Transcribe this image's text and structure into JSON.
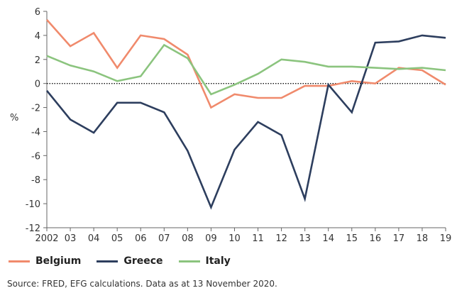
{
  "chart_data": {
    "type": "line",
    "categories": [
      "2002",
      "03",
      "04",
      "05",
      "06",
      "07",
      "08",
      "09",
      "10",
      "11",
      "12",
      "13",
      "14",
      "15",
      "16",
      "17",
      "18",
      "19"
    ],
    "ylabel": "%",
    "ylim": [
      -12,
      6
    ],
    "yticks": [
      6,
      4,
      2,
      0,
      -2,
      -4,
      -6,
      -8,
      -10,
      -12
    ],
    "zero_line": "dotted",
    "series": [
      {
        "name": "Belgium",
        "color": "#f08a6c",
        "values": [
          5.3,
          3.1,
          4.2,
          1.3,
          4.0,
          3.7,
          2.4,
          -2.0,
          -0.9,
          -1.2,
          -1.2,
          -0.2,
          -0.2,
          0.2,
          0.0,
          1.3,
          1.1,
          -0.1
        ]
      },
      {
        "name": "Greece",
        "color": "#2d3e5e",
        "values": [
          -0.6,
          -3.0,
          -4.1,
          -1.6,
          -1.6,
          -2.4,
          -5.6,
          -10.3,
          -5.5,
          -3.2,
          -4.3,
          -9.6,
          -0.1,
          -2.4,
          3.4,
          3.5,
          4.0,
          3.8
        ]
      },
      {
        "name": "Italy",
        "color": "#8bc47e",
        "values": [
          2.3,
          1.5,
          1.0,
          0.2,
          0.6,
          3.2,
          2.1,
          -0.9,
          -0.1,
          0.8,
          2.0,
          1.8,
          1.4,
          1.4,
          1.3,
          1.2,
          1.3,
          1.1
        ]
      }
    ]
  },
  "legend": [
    {
      "label": "Belgium",
      "color": "#f08a6c"
    },
    {
      "label": "Greece",
      "color": "#2d3e5e"
    },
    {
      "label": "Italy",
      "color": "#8bc47e"
    }
  ],
  "source": "Source: FRED, EFG calculations. Data as at 13 November 2020."
}
